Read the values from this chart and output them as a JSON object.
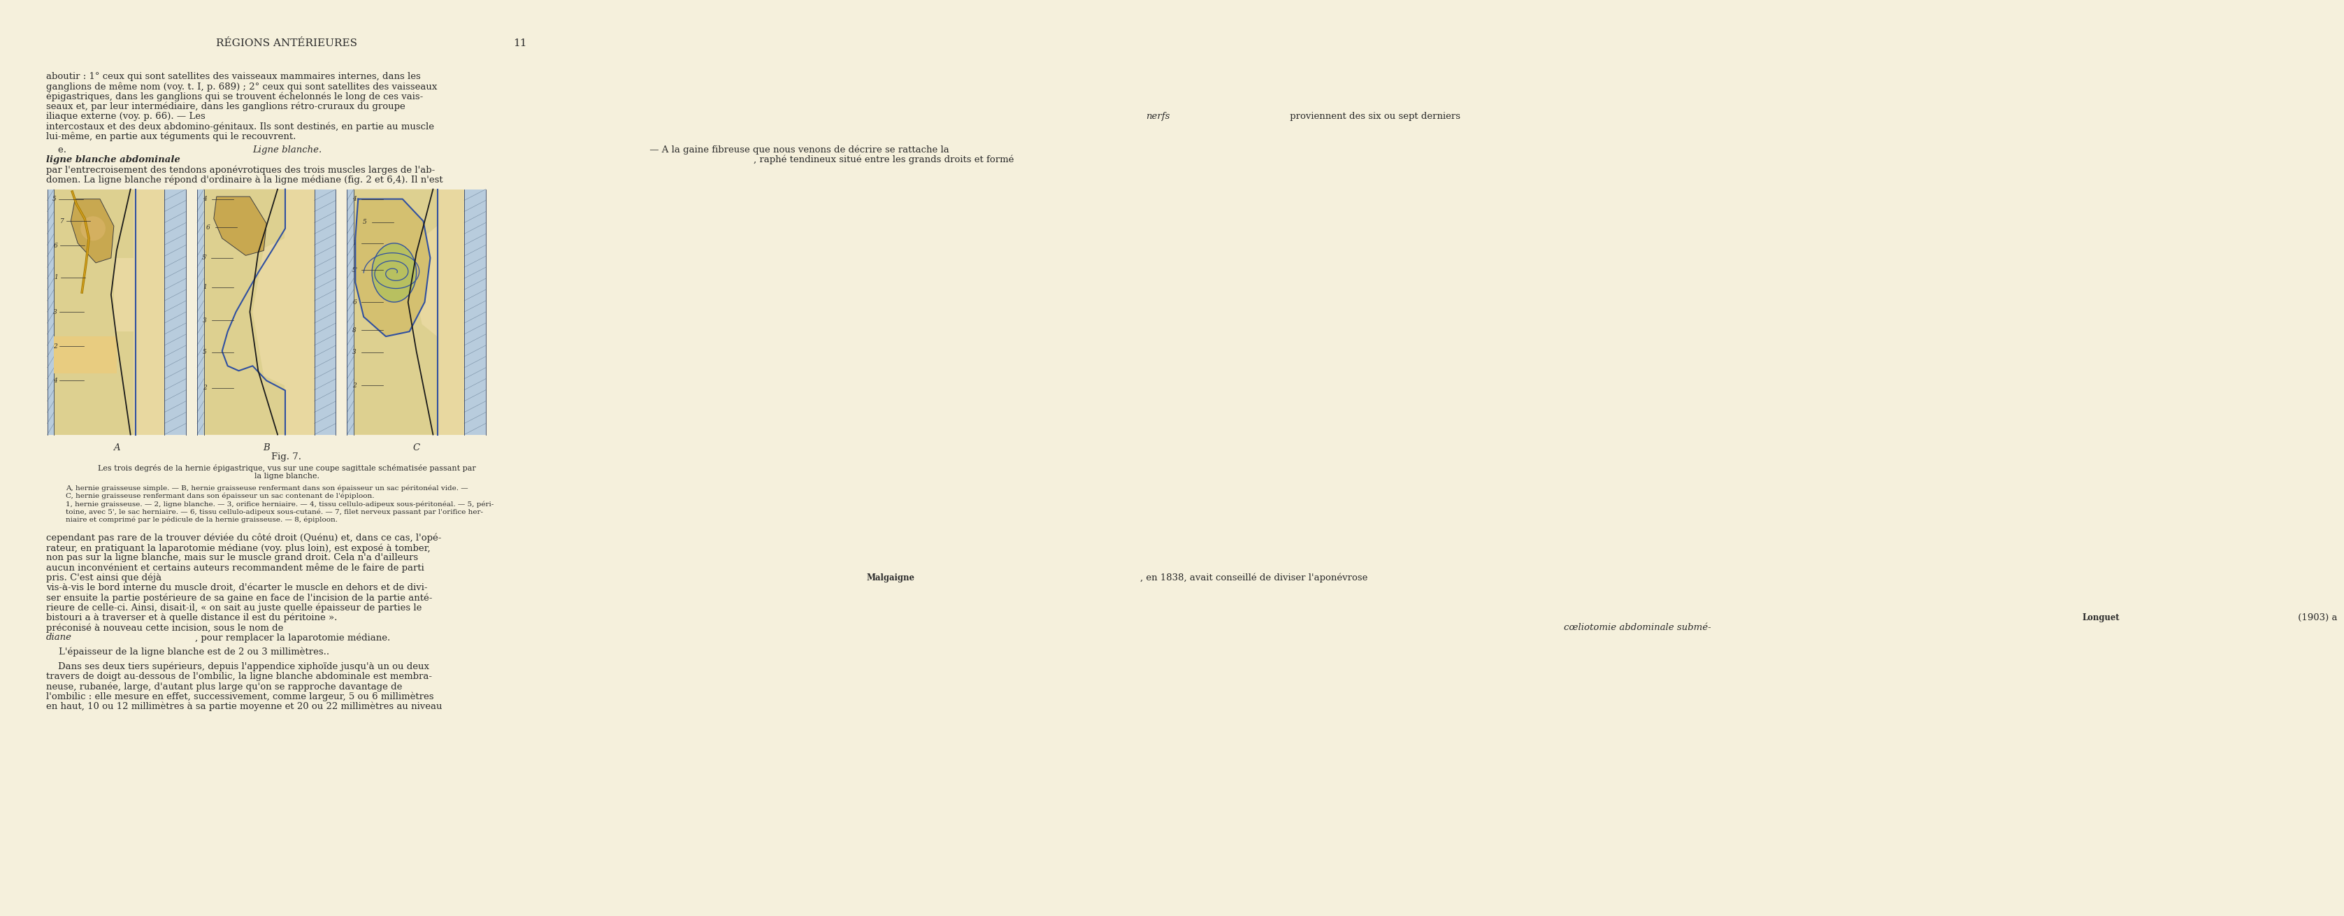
{
  "page_background": "#f5f0dc",
  "header_text": "RÉGIONS ANTÉRIEURES",
  "page_number": "11",
  "header_fontsize": 11,
  "body_fontsize": 9.5,
  "caption_fontsize": 8,
  "small_fontsize": 7.5,
  "text_color": "#2a2a2a",
  "fig_label": "Fig. 7.",
  "skin_color": "#e8d8a0",
  "fat_color": "#d9c87a",
  "pale_blue": "#b8ccdd",
  "blue_line": "#3050a0",
  "line_color": "#404040",
  "para1_lines": [
    "aboutir : 1° ceux qui sont satellites des vaisseaux mammaires internes, dans les",
    "ganglions de même nom (voy. t. I, p. 689) ; 2° ceux qui sont satellites des vaisseaux",
    "épigastriques, dans les ganglions qui se trouvent échelonnés le long de ces vais-",
    "seaux et, par leur intermédiaire, dans les ganglions rétro-cruraux du groupe",
    "iliaque externe (voy. p. 66). — Les nerfs proviennent des six ou sept derniers",
    "intercostaux et des deux abdomino-génitaux. Ils sont destinés, en partie au muscle",
    "lui-même, en partie aux téguments qui le recouvrent."
  ],
  "para2_line1_pre": "    e. ",
  "para2_line1_italic": "Ligne blanche.",
  "para2_line1_post": " — A la gaine fibreuse que nous venons de décrire se rattache la",
  "para2_line2_italic": "ligne blanche abdominale",
  "para2_line2_post": ", raphé tendineux situé entre les grands droits et formé",
  "para2_rest": [
    "par l'entrecroisement des tendons aponévrotiques des trois muscles larges de l'ab-",
    "domen. La ligne blanche répond d'ordinaire à la ligne médiane (fig. 2 et 6,4). Il n'est"
  ],
  "fig_caption_main": [
    "Les trois degrés de la hernie épigastrique, vus sur une coupe sagittale schématisée passant par",
    "la ligne blanche."
  ],
  "fig_caption_small": [
    "A, hernie graisseuse simple. — B, hernie graisseuse renfermant dans son épaisseur un sac péritonéal vide. —",
    "C, hernie graisseuse renfermant dans son épaisseur un sac contenant de l'épiploon.",
    "1, hernie graisseuse. — 2, ligne blanche. — 3, orifice herniaire. — 4, tissu cellulo-adipeux sous-péritonéal. — 5, péri-",
    "toine, avec 5', le sac herniaire. — 6, tissu cellulo-adipeux sous-cutané. — 7, filet nerveux passant par l'orifice her-",
    "niaire et comprimé par le pédicule de la hernie graisseuse. — 8, épiploon."
  ],
  "para3_lines": [
    "cependant pas rare de la trouver déviée du côté droit (Quénu) et, dans ce cas, l'opé-",
    "rateur, en pratiquant la laparotomie médiane (voy. plus loin), est exposé à tomber,",
    "non pas sur la ligne blanche, mais sur le muscle grand droit. Cela n'a d'ailleurs",
    "aucun inconvénient et certains auteurs recommandent même de le faire de parti",
    "pris. C'est ainsi que déjà Malgaigne, en 1838, avait conseillé de diviser l'aponévrose",
    "vis-à-vis le bord interne du muscle droit, d'écarter le muscle en dehors et de divi-",
    "ser ensuite la partie postérieure de sa gaine en face de l'incision de la partie anté-",
    "rieure de celle-ci. Ainsi, disait-il, « on sait au juste quelle épaisseur de parties le",
    "bistouri a à traverser et à quelle distance il est du péritoine ». Longuet (1903) a",
    "préconisé à nouveau cette incision, sous le nom de cœliotomie abdominale submé-",
    "diane, pour remplacer la laparotomie médiane."
  ],
  "para4": "L'épaisseur de la ligne blanche est de 2 ou 3 millimètres..",
  "para5_lines": [
    "    Dans ses deux tiers supérieurs, depuis l'appendice xiphoïde jusqu'à un ou deux",
    "travers de doigt au-dessous de l'ombilic, la ligne blanche abdominale est membra-",
    "neuse, rubanée, large, d'autant plus large qu'on se rapproche davantage de",
    "l'ombilic : elle mesure en effet, successivement, comme largeur, 5 ou 6 millimètres",
    "en haut, 10 ou 12 millimètres à sa partie moyenne et 20 ou 22 millimètres au niveau"
  ]
}
